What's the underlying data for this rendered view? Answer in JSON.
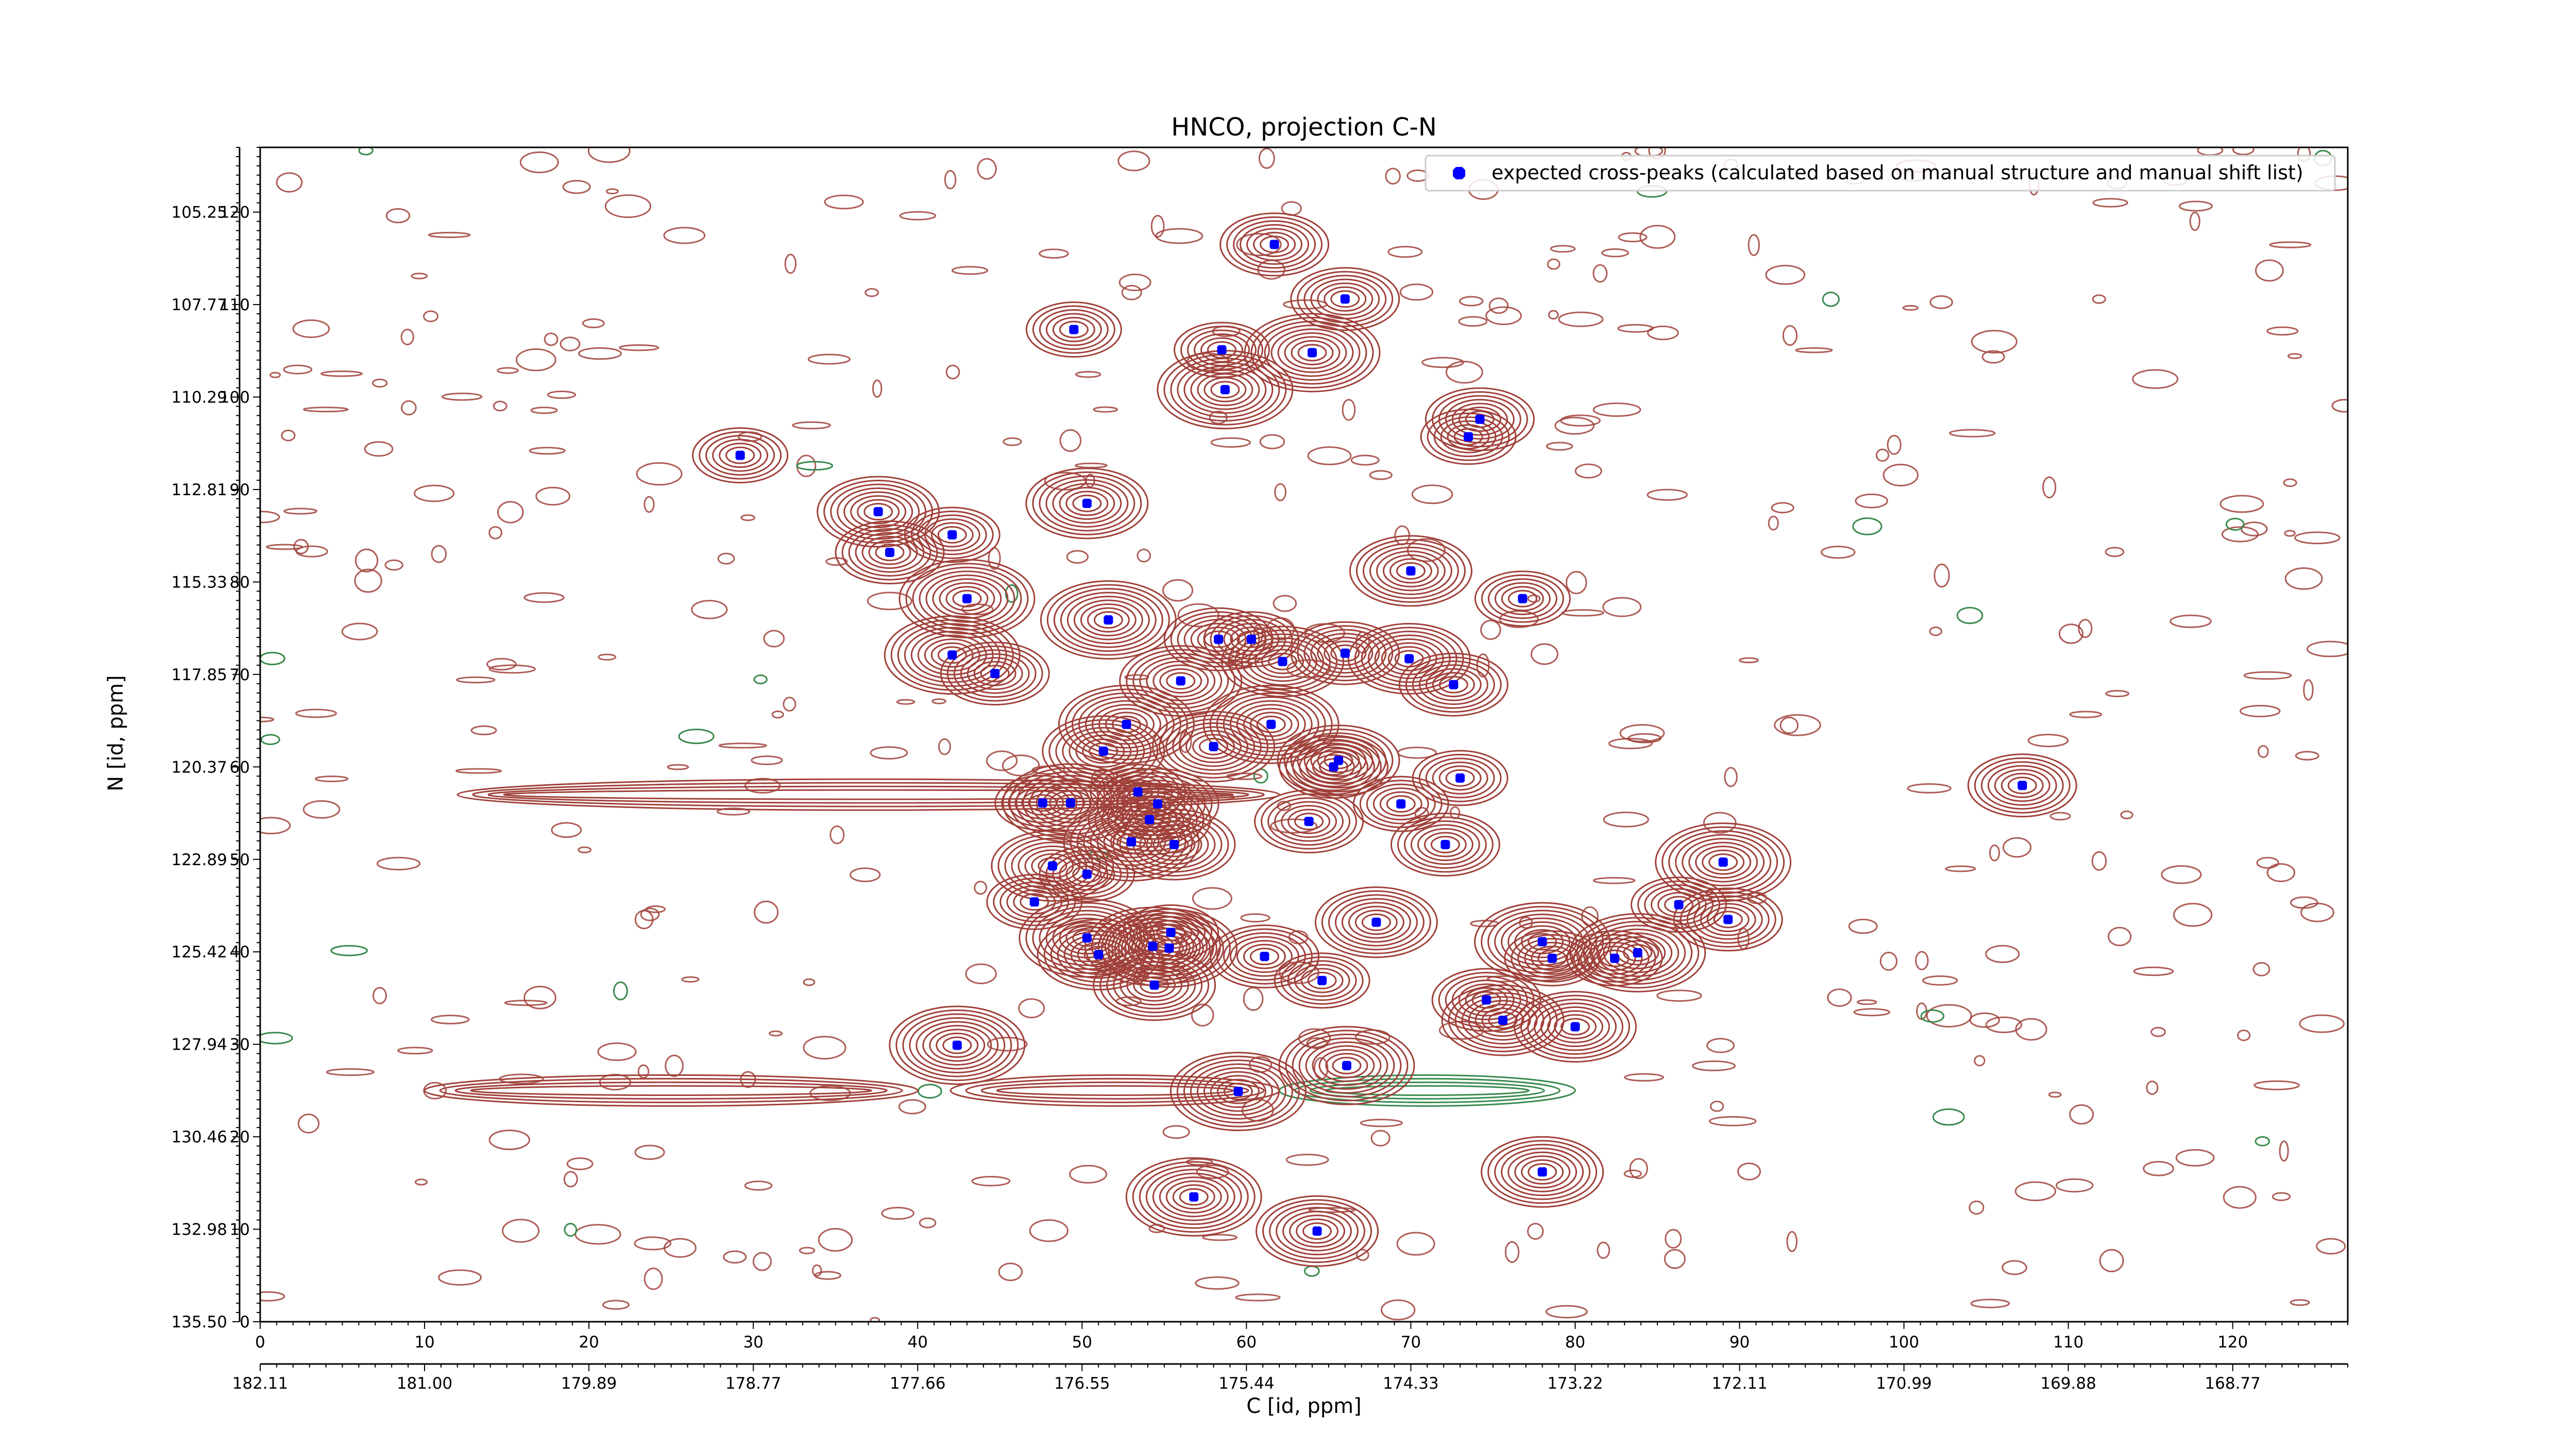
{
  "chart_data": {
    "type": "scatter",
    "title": "HNCO, projection C-N",
    "xlabel": "C [id, ppm]",
    "ylabel": "N [id, ppm]",
    "xlim": [
      0,
      127
    ],
    "ylim": [
      0,
      127
    ],
    "x_ticks": [
      0,
      10,
      20,
      30,
      40,
      50,
      60,
      70,
      80,
      90,
      100,
      110,
      120
    ],
    "y_ticks": [
      0,
      10,
      20,
      30,
      40,
      50,
      60,
      70,
      80,
      90,
      100,
      110,
      120
    ],
    "x_ppm_ticks": [
      {
        "pos": 0,
        "label": "182.11"
      },
      {
        "pos": 10,
        "label": "181.00"
      },
      {
        "pos": 20,
        "label": "179.89"
      },
      {
        "pos": 30,
        "label": "178.77"
      },
      {
        "pos": 40,
        "label": "177.66"
      },
      {
        "pos": 50,
        "label": "176.55"
      },
      {
        "pos": 60,
        "label": "175.44"
      },
      {
        "pos": 70,
        "label": "174.33"
      },
      {
        "pos": 80,
        "label": "173.22"
      },
      {
        "pos": 90,
        "label": "172.11"
      },
      {
        "pos": 100,
        "label": "170.99"
      },
      {
        "pos": 110,
        "label": "169.88"
      },
      {
        "pos": 120,
        "label": "168.77"
      }
    ],
    "y_ppm_ticks": [
      {
        "pos": 0,
        "label": "135.50"
      },
      {
        "pos": 10,
        "label": "132.98"
      },
      {
        "pos": 20,
        "label": "130.46"
      },
      {
        "pos": 30,
        "label": "127.94"
      },
      {
        "pos": 40,
        "label": "125.42"
      },
      {
        "pos": 50,
        "label": "122.89"
      },
      {
        "pos": 60,
        "label": "120.37"
      },
      {
        "pos": 70,
        "label": "117.85"
      },
      {
        "pos": 80,
        "label": "115.33"
      },
      {
        "pos": 90,
        "label": "112.81"
      },
      {
        "pos": 100,
        "label": "110.29"
      },
      {
        "pos": 110,
        "label": "107.77"
      },
      {
        "pos": 120,
        "label": "105.25"
      }
    ],
    "legend": {
      "location": "top-right",
      "entries": [
        "expected cross-peaks (calculated based on manual structure and manual shift list)"
      ]
    },
    "series": [
      {
        "name": "expected cross-peaks (calculated based on manual structure and manual shift list)",
        "color": "#0000ff",
        "points": [
          [
            61.7,
            116.5
          ],
          [
            66.0,
            110.6
          ],
          [
            49.5,
            107.3
          ],
          [
            58.5,
            105.1
          ],
          [
            64.0,
            104.8
          ],
          [
            58.7,
            100.8
          ],
          [
            74.2,
            97.6
          ],
          [
            73.5,
            95.7
          ],
          [
            29.2,
            93.7
          ],
          [
            50.3,
            88.5
          ],
          [
            37.6,
            87.6
          ],
          [
            42.1,
            85.1
          ],
          [
            38.3,
            83.2
          ],
          [
            70.0,
            81.2
          ],
          [
            43.0,
            78.2
          ],
          [
            76.8,
            78.2
          ],
          [
            51.6,
            75.9
          ],
          [
            58.3,
            73.8
          ],
          [
            60.3,
            73.8
          ],
          [
            66.0,
            72.3
          ],
          [
            42.1,
            72.1
          ],
          [
            62.2,
            71.4
          ],
          [
            69.9,
            71.7
          ],
          [
            44.7,
            70.1
          ],
          [
            56.0,
            69.3
          ],
          [
            72.6,
            68.9
          ],
          [
            52.7,
            64.6
          ],
          [
            61.5,
            64.6
          ],
          [
            58.0,
            62.2
          ],
          [
            65.6,
            60.7
          ],
          [
            65.3,
            60.0
          ],
          [
            73.0,
            58.8
          ],
          [
            51.3,
            61.7
          ],
          [
            53.4,
            57.3
          ],
          [
            47.6,
            56.1
          ],
          [
            49.3,
            56.1
          ],
          [
            54.6,
            56.0
          ],
          [
            69.4,
            56.0
          ],
          [
            54.1,
            54.3
          ],
          [
            63.8,
            54.1
          ],
          [
            107.2,
            58.0
          ],
          [
            53.0,
            51.9
          ],
          [
            55.6,
            51.6
          ],
          [
            72.1,
            51.6
          ],
          [
            48.2,
            49.3
          ],
          [
            50.3,
            48.4
          ],
          [
            89.0,
            49.7
          ],
          [
            47.1,
            45.4
          ],
          [
            86.3,
            45.1
          ],
          [
            67.9,
            43.2
          ],
          [
            89.3,
            43.5
          ],
          [
            50.3,
            41.5
          ],
          [
            51.0,
            39.7
          ],
          [
            55.4,
            42.1
          ],
          [
            54.3,
            40.6
          ],
          [
            55.3,
            40.4
          ],
          [
            61.1,
            39.5
          ],
          [
            78.0,
            41.1
          ],
          [
            78.6,
            39.3
          ],
          [
            82.4,
            39.3
          ],
          [
            83.8,
            39.9
          ],
          [
            54.4,
            36.4
          ],
          [
            64.6,
            36.9
          ],
          [
            74.6,
            34.8
          ],
          [
            75.6,
            32.6
          ],
          [
            80.0,
            31.9
          ],
          [
            42.4,
            29.9
          ],
          [
            66.1,
            27.7
          ],
          [
            59.5,
            24.9
          ],
          [
            78.0,
            16.2
          ],
          [
            56.8,
            13.5
          ],
          [
            64.3,
            9.8
          ]
        ]
      }
    ],
    "background": "2D NMR contour map, positive contours #a0413a, negative contours #3a8a4e",
    "grid": false
  }
}
